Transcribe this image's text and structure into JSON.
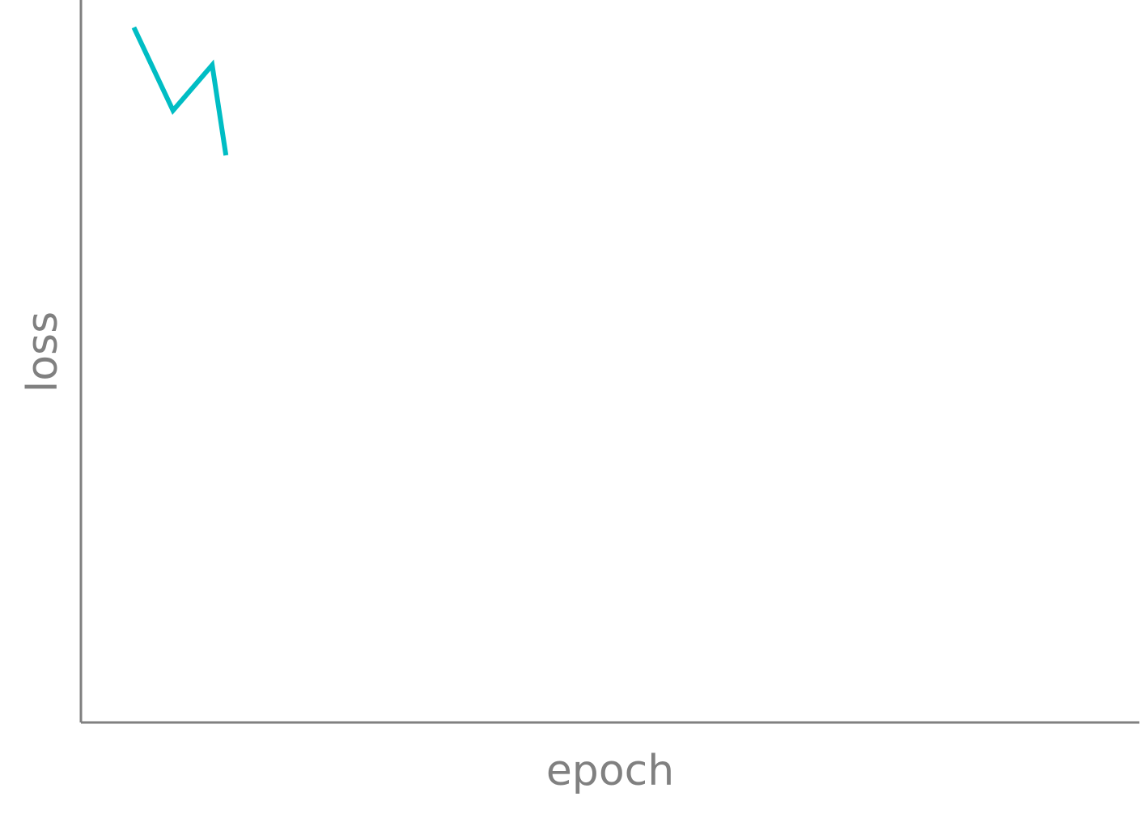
{
  "chart_data": {
    "type": "line",
    "xlabel": "epoch",
    "ylabel": "loss",
    "grid": false,
    "xlim": [
      0,
      100
    ],
    "ylim": [
      0,
      100
    ],
    "series": [
      {
        "color": "#00BDC4",
        "x": [
          5,
          8.7,
          12.4,
          13.7
        ],
        "y": [
          96.2,
          84.7,
          91.0,
          78.5
        ]
      }
    ]
  }
}
